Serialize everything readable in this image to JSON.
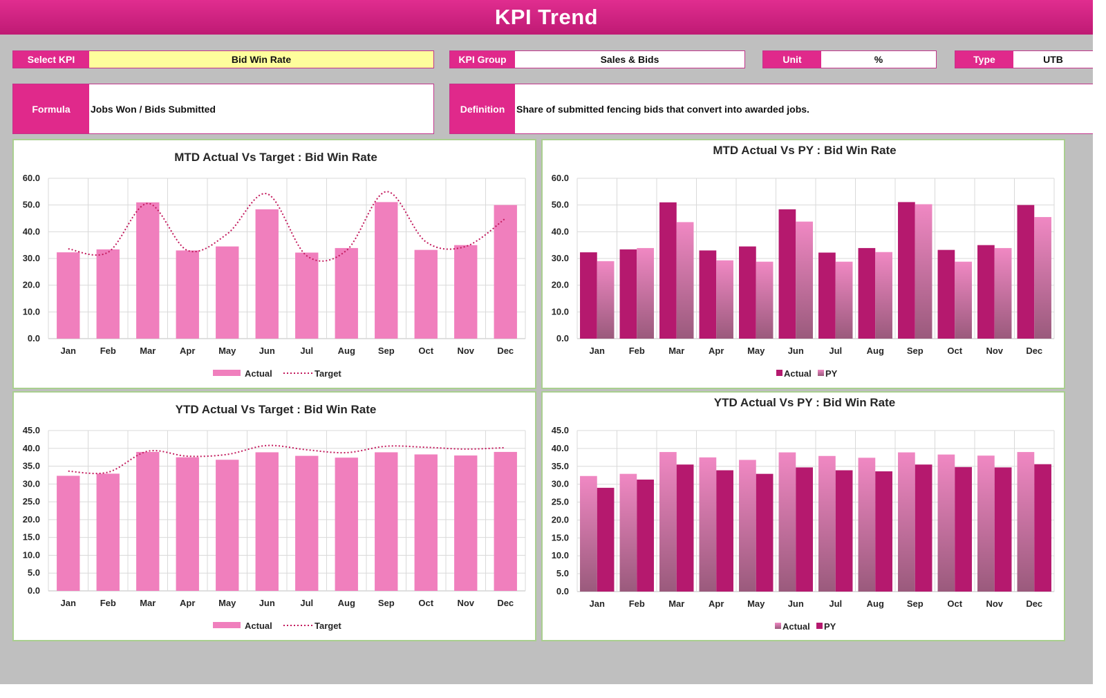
{
  "header": {
    "title": "KPI Trend"
  },
  "fields": {
    "select_kpi": {
      "label": "Select KPI",
      "value": "Bid Win Rate"
    },
    "kpi_group": {
      "label": "KPI Group",
      "value": "Sales & Bids"
    },
    "unit": {
      "label": "Unit",
      "value": "%"
    },
    "type": {
      "label": "Type",
      "value": "UTB"
    },
    "formula": {
      "label": "Formula",
      "value": "Jobs Won / Bids Submitted"
    },
    "definition": {
      "label": "Definition",
      "value": "Share of submitted fencing bids that convert into awarded jobs."
    }
  },
  "colors": {
    "accent": "#e0298b",
    "actual_pink": "#f07fbd",
    "dark_magenta": "#b5196e",
    "target_line": "#c2185b",
    "panel_border": "#a9cf8f"
  },
  "chart_data": [
    {
      "id": "mtd_target",
      "type": "bar",
      "title": "MTD Actual Vs Target : Bid Win Rate",
      "categories": [
        "Jan",
        "Feb",
        "Mar",
        "Apr",
        "May",
        "Jun",
        "Jul",
        "Aug",
        "Sep",
        "Oct",
        "Nov",
        "Dec"
      ],
      "ylim": [
        0,
        60
      ],
      "yticks": [
        "0.0",
        "10.0",
        "20.0",
        "30.0",
        "40.0",
        "50.0",
        "60.0"
      ],
      "series": [
        {
          "name": "Actual",
          "type": "bar",
          "values": [
            32.3,
            33.4,
            51.0,
            33.0,
            34.5,
            48.4,
            32.2,
            33.9,
            51.1,
            33.2,
            35.0,
            50.0
          ]
        },
        {
          "name": "Target",
          "type": "line",
          "values": [
            33.6,
            32.3,
            50.6,
            33.0,
            39.2,
            54.2,
            31.0,
            33.0,
            55.0,
            36.2,
            34.5,
            45.0
          ]
        }
      ],
      "legend": "bottom",
      "grid": true
    },
    {
      "id": "mtd_py",
      "type": "bar",
      "title": "MTD Actual Vs PY : Bid Win Rate",
      "categories": [
        "Jan",
        "Feb",
        "Mar",
        "Apr",
        "May",
        "Jun",
        "Jul",
        "Aug",
        "Sep",
        "Oct",
        "Nov",
        "Dec"
      ],
      "ylim": [
        0,
        60
      ],
      "yticks": [
        "0.0",
        "10.0",
        "20.0",
        "30.0",
        "40.0",
        "50.0",
        "60.0"
      ],
      "series": [
        {
          "name": "Actual",
          "type": "bar",
          "values": [
            32.3,
            33.4,
            51.0,
            33.0,
            34.5,
            48.4,
            32.2,
            33.9,
            51.1,
            33.2,
            35.0,
            50.0
          ]
        },
        {
          "name": "PY",
          "type": "bar",
          "values": [
            29.0,
            33.9,
            43.6,
            29.3,
            28.8,
            43.8,
            28.8,
            32.4,
            50.3,
            28.8,
            33.9,
            45.5
          ]
        }
      ],
      "legend": "bottom",
      "grid": true
    },
    {
      "id": "ytd_target",
      "type": "bar",
      "title": "YTD Actual Vs Target : Bid Win Rate",
      "categories": [
        "Jan",
        "Feb",
        "Mar",
        "Apr",
        "May",
        "Jun",
        "Jul",
        "Aug",
        "Sep",
        "Oct",
        "Nov",
        "Dec"
      ],
      "ylim": [
        0,
        45
      ],
      "yticks": [
        "0.0",
        "5.0",
        "10.0",
        "15.0",
        "20.0",
        "25.0",
        "30.0",
        "35.0",
        "40.0",
        "45.0"
      ],
      "series": [
        {
          "name": "Actual",
          "type": "bar",
          "values": [
            32.3,
            32.9,
            39.0,
            37.5,
            36.8,
            38.9,
            37.9,
            37.4,
            38.9,
            38.3,
            38.0,
            39.0
          ]
        },
        {
          "name": "Target",
          "type": "line",
          "values": [
            33.6,
            33.3,
            39.2,
            37.8,
            38.3,
            40.8,
            39.6,
            38.8,
            40.6,
            40.3,
            39.8,
            40.2
          ]
        }
      ],
      "legend": "bottom",
      "grid": true
    },
    {
      "id": "ytd_py",
      "type": "bar",
      "title": "YTD Actual Vs PY : Bid Win Rate",
      "categories": [
        "Jan",
        "Feb",
        "Mar",
        "Apr",
        "May",
        "Jun",
        "Jul",
        "Aug",
        "Sep",
        "Oct",
        "Nov",
        "Dec"
      ],
      "ylim": [
        0,
        45
      ],
      "yticks": [
        "0.0",
        "5.0",
        "10.0",
        "15.0",
        "20.0",
        "25.0",
        "30.0",
        "35.0",
        "40.0",
        "45.0"
      ],
      "series": [
        {
          "name": "Actual",
          "type": "bar",
          "values": [
            32.3,
            32.9,
            39.0,
            37.5,
            36.8,
            38.9,
            37.9,
            37.4,
            38.9,
            38.3,
            38.0,
            39.0
          ]
        },
        {
          "name": "PY",
          "type": "bar",
          "values": [
            29.0,
            31.3,
            35.5,
            33.9,
            32.9,
            34.7,
            33.9,
            33.6,
            35.5,
            34.8,
            34.7,
            35.6
          ]
        }
      ],
      "legend": "bottom",
      "grid": true
    }
  ]
}
